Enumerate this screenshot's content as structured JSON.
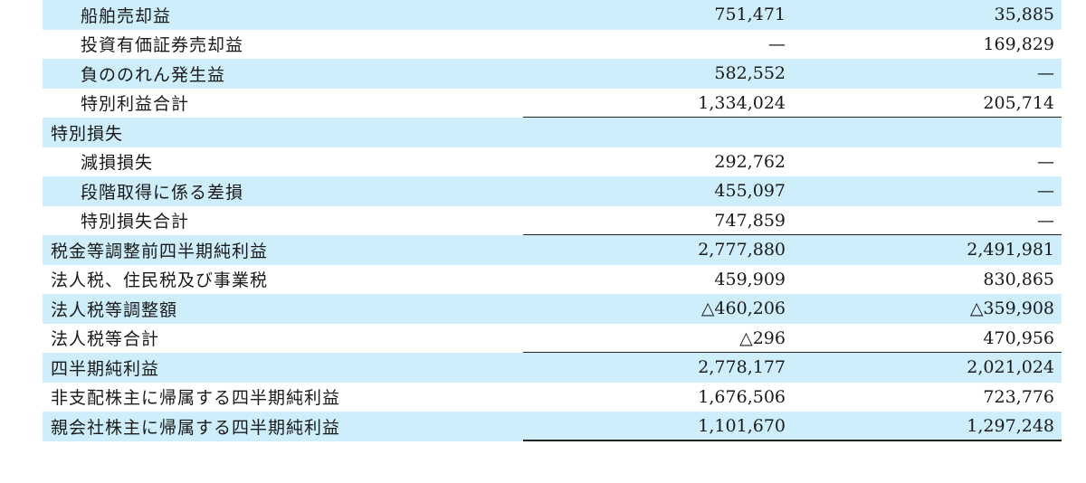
{
  "rows": [
    {
      "label": "船舶売却益",
      "level": 1,
      "c1": "751,471",
      "c2": "35,885",
      "shaded": true,
      "rule": false
    },
    {
      "label": "投資有価証券売却益",
      "level": 1,
      "c1": "—",
      "c2": "169,829",
      "shaded": false,
      "rule": false
    },
    {
      "label": "負ののれん発生益",
      "level": 1,
      "c1": "582,552",
      "c2": "—",
      "shaded": true,
      "rule": false
    },
    {
      "label": "特別利益合計",
      "level": 1,
      "c1": "1,334,024",
      "c2": "205,714",
      "shaded": false,
      "rule": true
    },
    {
      "label": "特別損失",
      "level": 0,
      "c1": "",
      "c2": "",
      "shaded": true,
      "rule": false
    },
    {
      "label": "減損損失",
      "level": 1,
      "c1": "292,762",
      "c2": "—",
      "shaded": false,
      "rule": false
    },
    {
      "label": "段階取得に係る差損",
      "level": 1,
      "c1": "455,097",
      "c2": "—",
      "shaded": true,
      "rule": false
    },
    {
      "label": "特別損失合計",
      "level": 1,
      "c1": "747,859",
      "c2": "—",
      "shaded": false,
      "rule": true
    },
    {
      "label": "税金等調整前四半期純利益",
      "level": 0,
      "c1": "2,777,880",
      "c2": "2,491,981",
      "shaded": true,
      "rule": false
    },
    {
      "label": "法人税、住民税及び事業税",
      "level": 0,
      "c1": "459,909",
      "c2": "830,865",
      "shaded": false,
      "rule": false
    },
    {
      "label": "法人税等調整額",
      "level": 0,
      "c1": "△460,206",
      "c2": "△359,908",
      "shaded": true,
      "rule": false
    },
    {
      "label": "法人税等合計",
      "level": 0,
      "c1": "△296",
      "c2": "470,956",
      "shaded": false,
      "rule": true
    },
    {
      "label": "四半期純利益",
      "level": 0,
      "c1": "2,778,177",
      "c2": "2,021,024",
      "shaded": true,
      "rule": false
    },
    {
      "label": "非支配株主に帰属する四半期純利益",
      "level": 0,
      "c1": "1,676,506",
      "c2": "723,776",
      "shaded": false,
      "rule": false
    },
    {
      "label": "親会社株主に帰属する四半期純利益",
      "level": 0,
      "c1": "1,101,670",
      "c2": "1,297,248",
      "shaded": true,
      "rule": true
    }
  ],
  "colors": {
    "shade": "#cdeefa",
    "rule": "#222222"
  }
}
